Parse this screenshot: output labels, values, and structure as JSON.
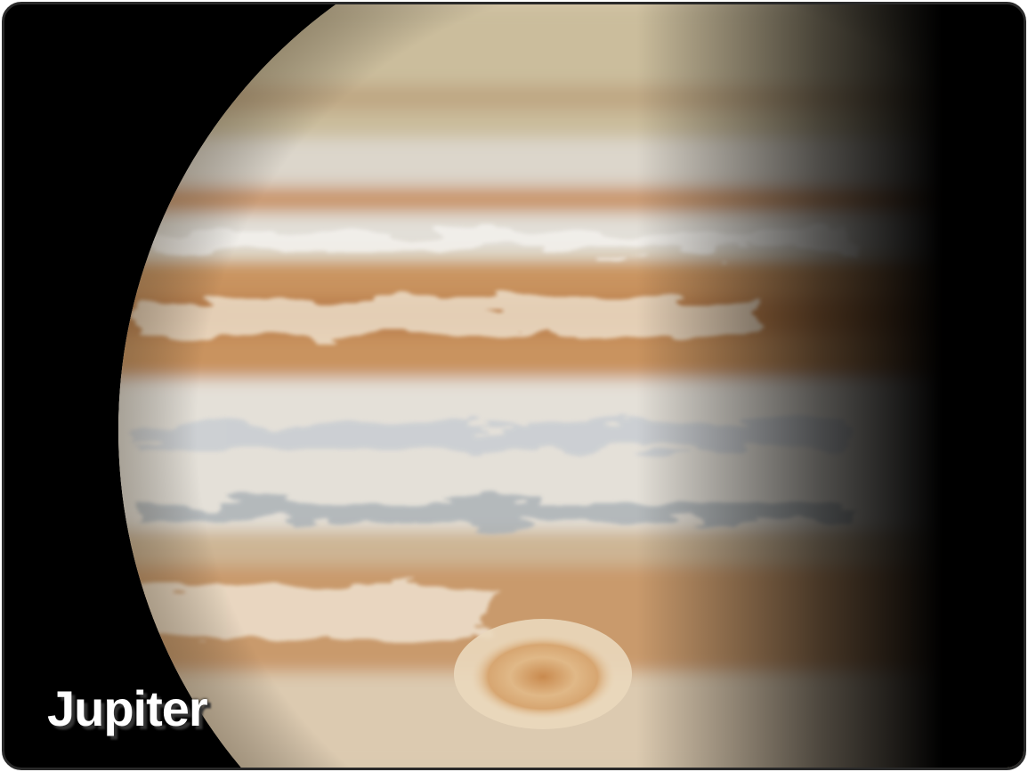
{
  "caption": "Jupiter"
}
